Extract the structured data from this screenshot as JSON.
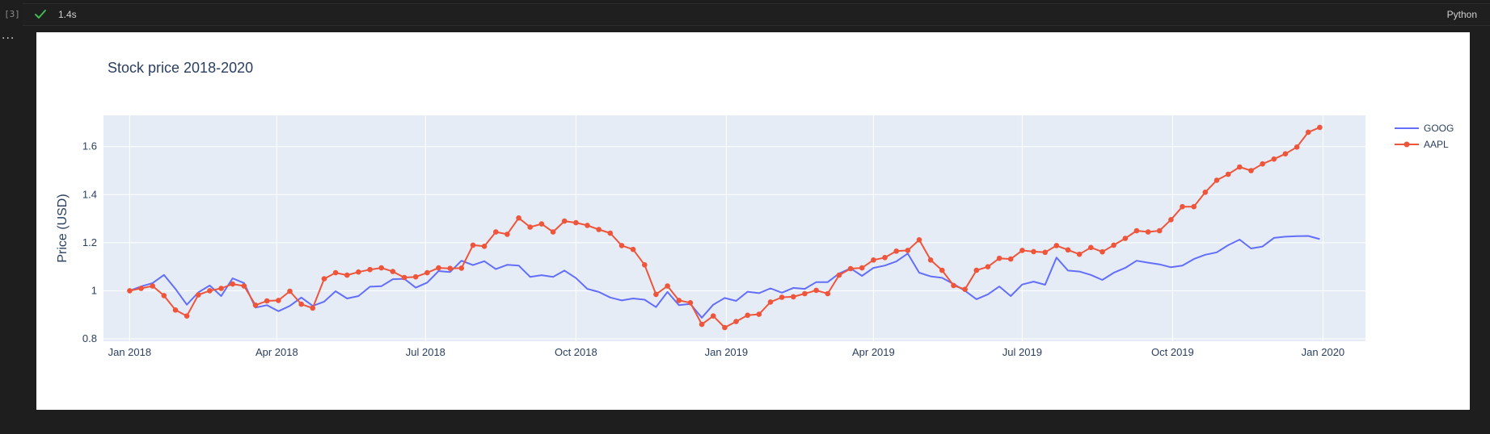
{
  "cell": {
    "execution_count": "[3]",
    "status_icon": "check-icon",
    "duration": "1.4s",
    "language": "Python",
    "output_menu": "..."
  },
  "colors": {
    "status_check": "#3fb950",
    "goog": "#636efa",
    "aapl": "#ef553b",
    "plot_bg": "#e5ecf6"
  },
  "chart_data": {
    "type": "line",
    "title": "Stock price 2018-2020",
    "xlabel": "",
    "ylabel": "Price (USD)",
    "ylim": [
      0.79,
      1.73
    ],
    "xlim": [
      "2017-12-16",
      "2020-01-27"
    ],
    "x_ticks": [
      {
        "label": "Jan 2018",
        "date": "2018-01-01"
      },
      {
        "label": "Apr 2018",
        "date": "2018-04-01"
      },
      {
        "label": "Jul 2018",
        "date": "2018-07-01"
      },
      {
        "label": "Oct 2018",
        "date": "2018-10-01"
      },
      {
        "label": "Jan 2019",
        "date": "2019-01-01"
      },
      {
        "label": "Apr 2019",
        "date": "2019-04-01"
      },
      {
        "label": "Jul 2019",
        "date": "2019-07-01"
      },
      {
        "label": "Oct 2019",
        "date": "2019-10-01"
      },
      {
        "label": "Jan 2020",
        "date": "2020-01-01"
      }
    ],
    "y_ticks": [
      {
        "label": "0.8",
        "value": 0.8
      },
      {
        "label": "1",
        "value": 1.0
      },
      {
        "label": "1.2",
        "value": 1.2
      },
      {
        "label": "1.4",
        "value": 1.4
      },
      {
        "label": "1.6",
        "value": 1.6
      }
    ],
    "grid": true,
    "legend_position": "top-right",
    "x_start": "2018-01-01",
    "x_step_days": 7,
    "series": [
      {
        "name": "GOOG",
        "mode": "lines",
        "values": [
          1.0,
          1.018,
          1.032,
          1.066,
          1.008,
          0.942,
          0.993,
          1.022,
          0.978,
          1.052,
          1.032,
          0.93,
          0.94,
          0.915,
          0.937,
          0.972,
          0.937,
          0.955,
          0.998,
          0.968,
          0.978,
          1.017,
          1.019,
          1.048,
          1.05,
          1.013,
          1.034,
          1.082,
          1.078,
          1.125,
          1.107,
          1.123,
          1.09,
          1.108,
          1.105,
          1.058,
          1.065,
          1.058,
          1.084,
          1.053,
          1.008,
          0.995,
          0.972,
          0.96,
          0.968,
          0.963,
          0.932,
          0.995,
          0.94,
          0.945,
          0.888,
          0.942,
          0.97,
          0.958,
          0.996,
          0.99,
          1.01,
          0.992,
          1.012,
          1.008,
          1.036,
          1.036,
          1.072,
          1.093,
          1.062,
          1.095,
          1.105,
          1.122,
          1.155,
          1.075,
          1.06,
          1.054,
          1.028,
          1.0,
          0.965,
          0.985,
          1.018,
          0.978,
          1.026,
          1.038,
          1.025,
          1.138,
          1.084,
          1.08,
          1.066,
          1.045,
          1.075,
          1.095,
          1.125,
          1.117,
          1.11,
          1.098,
          1.105,
          1.132,
          1.15,
          1.16,
          1.19,
          1.213,
          1.176,
          1.184,
          1.22,
          1.225,
          1.227,
          1.228,
          1.215
        ]
      },
      {
        "name": "AAPL",
        "mode": "lines+markers",
        "values": [
          1.0,
          1.01,
          1.02,
          0.98,
          0.92,
          0.895,
          0.983,
          1.0,
          1.01,
          1.028,
          1.02,
          0.94,
          0.958,
          0.96,
          0.998,
          0.944,
          0.928,
          1.05,
          1.075,
          1.065,
          1.078,
          1.088,
          1.095,
          1.08,
          1.055,
          1.058,
          1.075,
          1.095,
          1.093,
          1.094,
          1.19,
          1.185,
          1.245,
          1.235,
          1.303,
          1.265,
          1.278,
          1.245,
          1.29,
          1.283,
          1.272,
          1.255,
          1.24,
          1.188,
          1.172,
          1.108,
          0.985,
          1.02,
          0.96,
          0.95,
          0.86,
          0.895,
          0.847,
          0.872,
          0.898,
          0.902,
          0.953,
          0.973,
          0.975,
          0.988,
          1.002,
          0.988,
          1.065,
          1.092,
          1.095,
          1.128,
          1.138,
          1.165,
          1.168,
          1.212,
          1.128,
          1.085,
          1.022,
          1.006,
          1.085,
          1.1,
          1.135,
          1.132,
          1.168,
          1.163,
          1.16,
          1.188,
          1.17,
          1.152,
          1.18,
          1.162,
          1.19,
          1.218,
          1.25,
          1.245,
          1.25,
          1.296,
          1.35,
          1.35,
          1.41,
          1.46,
          1.485,
          1.515,
          1.5,
          1.528,
          1.548,
          1.57,
          1.598,
          1.66,
          1.68
        ]
      }
    ]
  }
}
